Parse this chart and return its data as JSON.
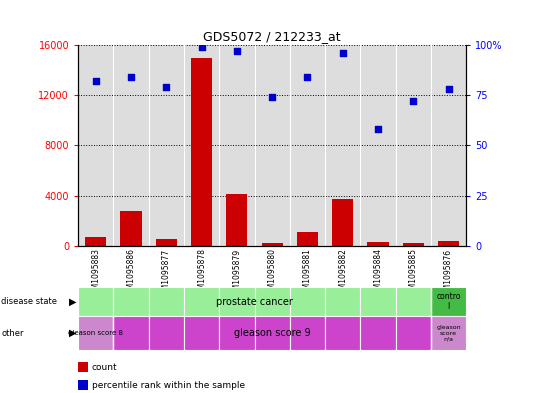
{
  "title": "GDS5072 / 212233_at",
  "samples": [
    "GSM1095883",
    "GSM1095886",
    "GSM1095877",
    "GSM1095878",
    "GSM1095879",
    "GSM1095880",
    "GSM1095881",
    "GSM1095882",
    "GSM1095884",
    "GSM1095885",
    "GSM1095876"
  ],
  "counts": [
    700,
    2800,
    500,
    15000,
    4100,
    200,
    1100,
    3700,
    300,
    200,
    400
  ],
  "percentile_ranks": [
    82,
    84,
    79,
    99,
    97,
    74,
    84,
    96,
    58,
    72,
    78
  ],
  "ylim_left": [
    0,
    16000
  ],
  "ylim_right": [
    0,
    100
  ],
  "yticks_left": [
    0,
    4000,
    8000,
    12000,
    16000
  ],
  "yticks_right": [
    0,
    25,
    50,
    75,
    100
  ],
  "bar_color": "#cc0000",
  "dot_color": "#0000cc",
  "disease_state_labels": [
    "prostate cancer",
    "prostate cancer",
    "prostate cancer",
    "prostate cancer",
    "prostate cancer",
    "prostate cancer",
    "prostate cancer",
    "prostate cancer",
    "prostate cancer",
    "prostate cancer",
    "control"
  ],
  "other_labels": [
    "gleason score 8",
    "gleason score 9",
    "gleason score 9",
    "gleason score 9",
    "gleason score 9",
    "gleason score 9",
    "gleason score 9",
    "gleason score 9",
    "gleason score 9",
    "gleason score 9",
    "gleason score n/a"
  ],
  "disease_state_color_prostate": "#99ee99",
  "disease_state_color_control": "#44bb44",
  "other_color_gs8": "#cc88cc",
  "other_color_gs9": "#cc44cc",
  "other_color_gsna": "#cc88cc",
  "bg_color": "#ffffff",
  "plot_bg_color": "#dddddd",
  "legend_count_color": "#cc0000",
  "legend_pct_color": "#0000cc"
}
